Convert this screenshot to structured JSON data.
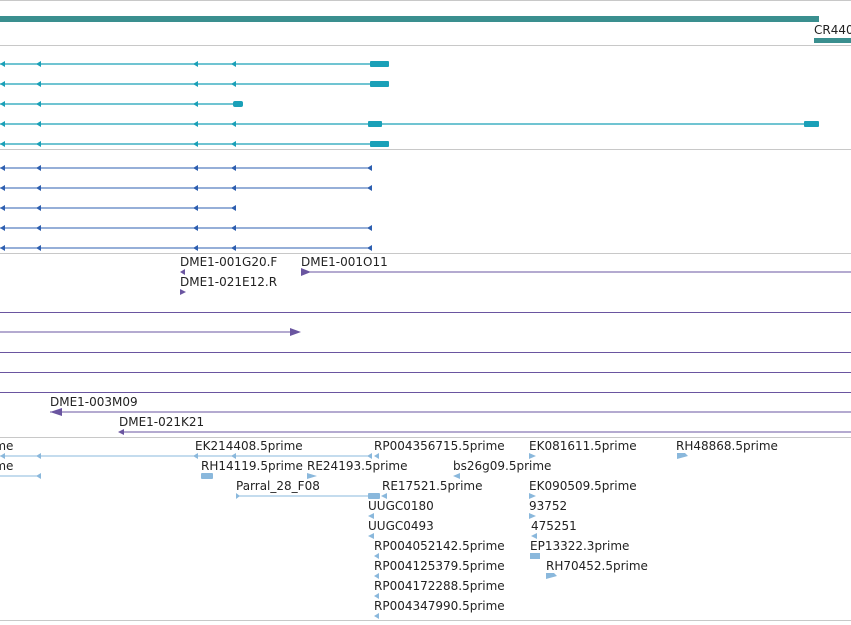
{
  "colors": {
    "gene_bar": "#3a8f8f",
    "transcript": "#1aa0b8",
    "cds": "#2e5fb0",
    "bac": "#6a55a0",
    "est": "#8ab8dc",
    "divider": "#c8c8c8"
  },
  "gene_track": {
    "label": "CR440"
  },
  "bac_labels": {
    "first": "DME1-001G20.F",
    "second": "DME1-001O11",
    "third": "DME1-021E12.R",
    "fourth": "DME1-003M09",
    "fifth": "DME1-021K21"
  },
  "est_labels": {
    "left_1": "ime",
    "left_2": "ime",
    "ek214408": "EK214408.5prime",
    "rh14119": "RH14119.5prime",
    "re24193": "RE24193.5prime",
    "parral": "Parral_28_F08",
    "rp004356715": "RP004356715.5prime",
    "bs26g09": "bs26g09.5prime",
    "re17521": "RE17521.5prime",
    "uugc0180": "UUGC0180",
    "uugc0493": "UUGC0493",
    "rp004052142": "RP004052142.5prime",
    "rp004125379": "RP004125379.5prime",
    "rp004172288": "RP004172288.5prime",
    "rp004347990": "RP004347990.5prime",
    "ek081611": "EK081611.5prime",
    "ek090509": "EK090509.5prime",
    "n93752": "93752",
    "n475251": "475251",
    "ep13322": "EP13322.3prime",
    "rh70452": "RH70452.5prime",
    "rh48868": "RH48868.5prime"
  }
}
